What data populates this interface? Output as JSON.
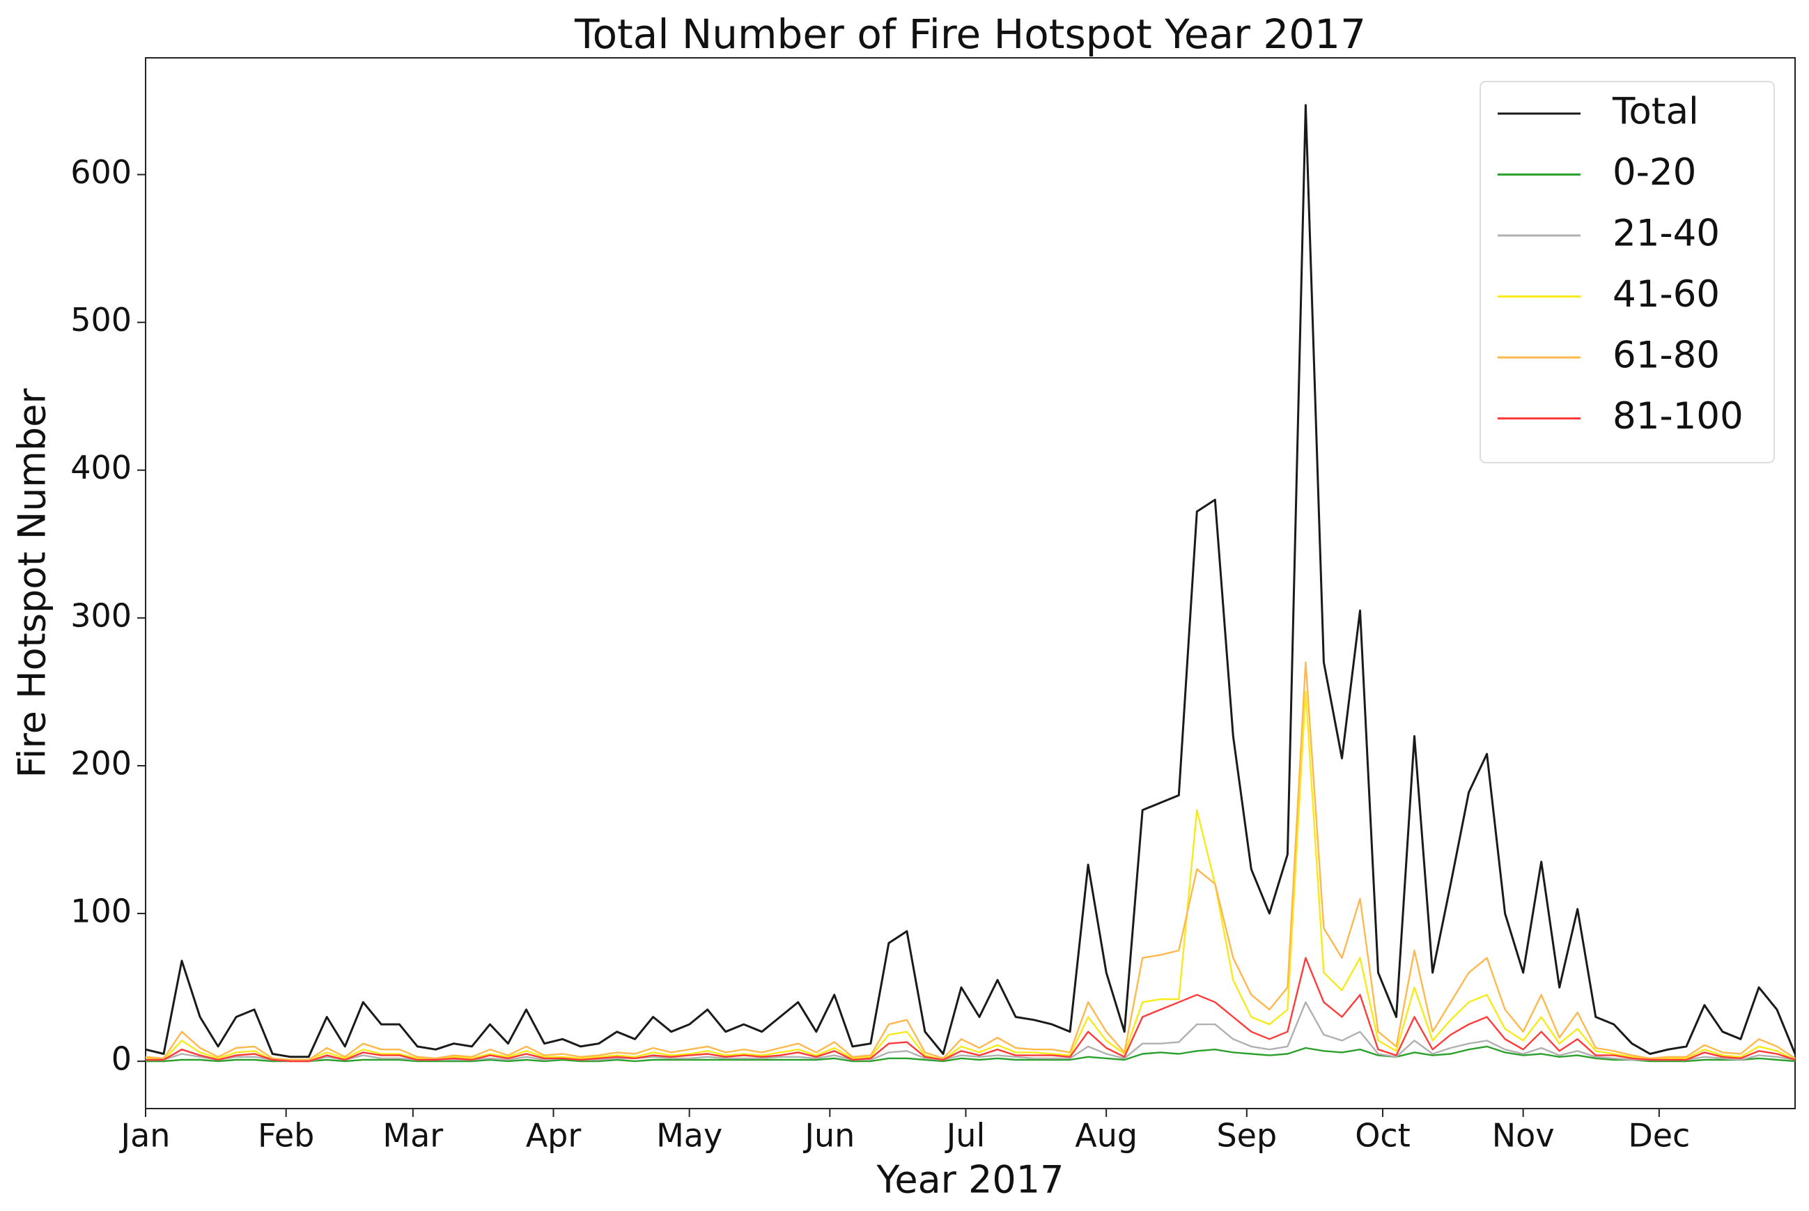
{
  "chart_data": {
    "type": "line",
    "title": "Total Number of Fire Hotspot Year 2017",
    "xlabel": "Year 2017",
    "ylabel": "Fire Hotspot Number",
    "xlim": [
      0,
      364
    ],
    "xticks": [
      {
        "value": 0,
        "label": "Jan"
      },
      {
        "value": 31,
        "label": "Feb"
      },
      {
        "value": 59,
        "label": "Mar"
      },
      {
        "value": 90,
        "label": "Apr"
      },
      {
        "value": 120,
        "label": "May"
      },
      {
        "value": 151,
        "label": "Jun"
      },
      {
        "value": 181,
        "label": "Jul"
      },
      {
        "value": 212,
        "label": "Aug"
      },
      {
        "value": 243,
        "label": "Sep"
      },
      {
        "value": 273,
        "label": "Oct"
      },
      {
        "value": 304,
        "label": "Nov"
      },
      {
        "value": 334,
        "label": "Dec"
      }
    ],
    "ylim": [
      -32,
      679
    ],
    "yticks": [
      0,
      100,
      200,
      300,
      400,
      500,
      600
    ],
    "grid": false,
    "legend": "upper right",
    "x": [
      0,
      4,
      8,
      12,
      16,
      20,
      24,
      28,
      32,
      36,
      40,
      44,
      48,
      52,
      56,
      60,
      64,
      68,
      72,
      76,
      80,
      84,
      88,
      92,
      96,
      100,
      104,
      108,
      112,
      116,
      120,
      124,
      128,
      132,
      136,
      140,
      144,
      148,
      152,
      156,
      160,
      164,
      168,
      172,
      176,
      180,
      184,
      188,
      192,
      196,
      200,
      204,
      208,
      212,
      216,
      220,
      224,
      228,
      232,
      236,
      240,
      244,
      248,
      252,
      256,
      260,
      264,
      268,
      272,
      276,
      280,
      284,
      288,
      292,
      296,
      300,
      304,
      308,
      312,
      316,
      320,
      324,
      328,
      332,
      336,
      340,
      344,
      348,
      352,
      356,
      360,
      364
    ],
    "series": [
      {
        "name": "Total",
        "color": "#1a1a1a",
        "values": [
          8,
          5,
          68,
          30,
          10,
          30,
          35,
          5,
          3,
          3,
          30,
          10,
          40,
          25,
          25,
          10,
          8,
          12,
          10,
          25,
          12,
          35,
          12,
          15,
          10,
          12,
          20,
          15,
          30,
          20,
          25,
          35,
          20,
          25,
          20,
          30,
          40,
          20,
          45,
          10,
          12,
          80,
          88,
          20,
          5,
          50,
          30,
          55,
          30,
          28,
          25,
          20,
          133,
          60,
          20,
          170,
          175,
          180,
          372,
          380,
          220,
          130,
          100,
          140,
          647,
          270,
          205,
          305,
          60,
          30,
          220,
          60,
          120,
          182,
          208,
          100,
          60,
          135,
          50,
          103,
          30,
          25,
          12,
          5,
          8,
          10,
          38,
          20,
          15,
          50,
          35,
          5
        ]
      },
      {
        "name": "0-20",
        "color": "#2ca02c",
        "values": [
          0,
          0,
          1,
          1,
          0,
          1,
          1,
          0,
          0,
          0,
          1,
          0,
          1,
          1,
          1,
          0,
          0,
          0,
          0,
          1,
          0,
          1,
          0,
          1,
          0,
          0,
          1,
          0,
          1,
          1,
          1,
          1,
          1,
          1,
          1,
          1,
          1,
          1,
          2,
          0,
          0,
          2,
          2,
          1,
          0,
          2,
          1,
          2,
          1,
          1,
          1,
          1,
          3,
          2,
          1,
          5,
          6,
          5,
          7,
          8,
          6,
          5,
          4,
          5,
          9,
          7,
          6,
          8,
          4,
          3,
          6,
          4,
          5,
          8,
          10,
          6,
          4,
          5,
          3,
          4,
          2,
          1,
          1,
          0,
          0,
          0,
          1,
          1,
          1,
          2,
          1,
          0
        ]
      },
      {
        "name": "21-40",
        "color": "#b0b0b0",
        "values": [
          1,
          1,
          5,
          3,
          1,
          3,
          3,
          1,
          0,
          0,
          3,
          1,
          4,
          2,
          2,
          1,
          1,
          1,
          1,
          2,
          1,
          3,
          1,
          2,
          1,
          1,
          2,
          2,
          3,
          2,
          2,
          3,
          2,
          2,
          2,
          3,
          3,
          2,
          4,
          1,
          1,
          6,
          7,
          2,
          1,
          4,
          3,
          4,
          3,
          2,
          2,
          2,
          10,
          5,
          2,
          12,
          12,
          13,
          25,
          25,
          15,
          10,
          8,
          10,
          40,
          18,
          14,
          20,
          5,
          3,
          14,
          5,
          9,
          12,
          14,
          8,
          5,
          9,
          4,
          7,
          3,
          2,
          1,
          1,
          1,
          1,
          3,
          2,
          1,
          4,
          3,
          1
        ]
      },
      {
        "name": "41-60",
        "color": "#f7ea1a",
        "values": [
          2,
          1,
          14,
          6,
          2,
          6,
          7,
          1,
          1,
          1,
          6,
          2,
          8,
          5,
          5,
          2,
          2,
          3,
          2,
          5,
          3,
          7,
          3,
          3,
          2,
          3,
          4,
          3,
          6,
          4,
          5,
          7,
          4,
          5,
          4,
          6,
          8,
          4,
          9,
          2,
          3,
          18,
          20,
          4,
          1,
          10,
          6,
          11,
          6,
          6,
          5,
          4,
          30,
          14,
          5,
          40,
          42,
          42,
          170,
          120,
          55,
          30,
          25,
          35,
          250,
          60,
          48,
          70,
          14,
          7,
          50,
          14,
          28,
          40,
          45,
          22,
          14,
          30,
          12,
          22,
          7,
          5,
          3,
          1,
          2,
          2,
          8,
          4,
          3,
          10,
          7,
          1
        ]
      },
      {
        "name": "61-80",
        "color": "#ffb84d",
        "values": [
          3,
          2,
          20,
          9,
          3,
          9,
          10,
          2,
          1,
          1,
          9,
          3,
          12,
          8,
          8,
          3,
          2,
          4,
          3,
          8,
          4,
          10,
          4,
          5,
          3,
          4,
          6,
          5,
          9,
          6,
          8,
          10,
          6,
          8,
          6,
          9,
          12,
          6,
          13,
          3,
          4,
          25,
          28,
          6,
          2,
          15,
          9,
          16,
          9,
          8,
          8,
          6,
          40,
          20,
          6,
          70,
          72,
          75,
          130,
          120,
          70,
          45,
          35,
          50,
          270,
          90,
          70,
          110,
          20,
          10,
          75,
          20,
          40,
          60,
          70,
          35,
          20,
          45,
          16,
          33,
          9,
          7,
          4,
          2,
          3,
          3,
          11,
          6,
          5,
          15,
          10,
          2
        ]
      },
      {
        "name": "81-100",
        "color": "#ff3a3a",
        "values": [
          1,
          1,
          8,
          4,
          1,
          4,
          5,
          1,
          0,
          0,
          4,
          1,
          6,
          4,
          4,
          1,
          1,
          2,
          1,
          4,
          2,
          5,
          2,
          2,
          1,
          2,
          3,
          2,
          4,
          3,
          4,
          5,
          3,
          4,
          3,
          4,
          6,
          3,
          7,
          1,
          2,
          12,
          13,
          3,
          1,
          7,
          4,
          8,
          4,
          4,
          4,
          3,
          20,
          9,
          3,
          30,
          35,
          40,
          45,
          40,
          30,
          20,
          15,
          20,
          70,
          40,
          30,
          45,
          8,
          4,
          30,
          8,
          18,
          25,
          30,
          15,
          8,
          20,
          7,
          15,
          4,
          4,
          2,
          1,
          1,
          1,
          6,
          3,
          2,
          7,
          5,
          1
        ]
      }
    ]
  }
}
